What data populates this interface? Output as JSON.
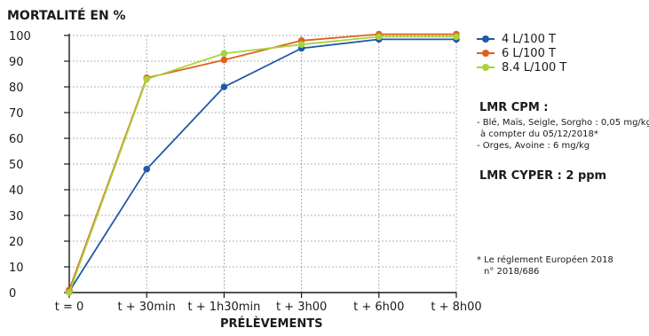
{
  "chart_data": {
    "type": "line",
    "ylabel": "MORTALITÉ EN %",
    "xlabel": "PRÉLÈVEMENTS",
    "categories": [
      "t = 0",
      "t + 30min",
      "t + 1h30min",
      "t + 3h00",
      "t + 6h00",
      "t + 8h00"
    ],
    "yticks": [
      0,
      10,
      20,
      30,
      40,
      50,
      60,
      70,
      80,
      90,
      100
    ],
    "ylim": [
      0,
      100
    ],
    "grid": true,
    "legend_position": "right",
    "series": [
      {
        "name": "4 L/100 T",
        "color": "#1f5aa6",
        "values": [
          0.5,
          48,
          80,
          95,
          98.5,
          98.5
        ]
      },
      {
        "name": "6 L/100 T",
        "color": "#e06020",
        "values": [
          1,
          83.5,
          90.5,
          98,
          100.5,
          100.5
        ]
      },
      {
        "name": "8.4 L/100 T",
        "color": "#a6d43a",
        "values": [
          0,
          83,
          93,
          96.5,
          99.5,
          99.5
        ]
      }
    ]
  },
  "notes": {
    "lmr_title": "LMR CPM :",
    "lmr_lines": [
      "- Blé, Maïs, Seigle, Sorgho : 0,05 mg/kg",
      "  à compter du 05/12/2018*",
      "- Orges, Avoine : 6 mg/kg"
    ],
    "cyper": "LMR CYPER : 2 ppm",
    "footnote_lines": [
      "* Le réglement Européen 2018",
      "   n° 2018/686"
    ]
  }
}
